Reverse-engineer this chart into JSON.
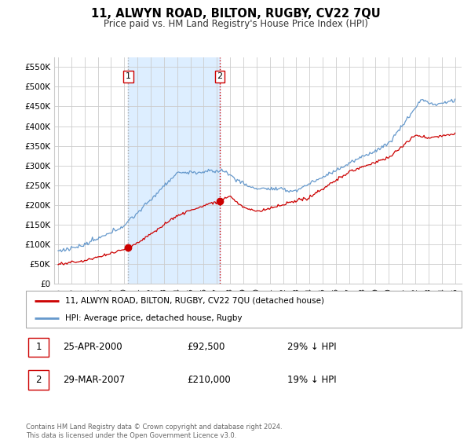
{
  "title": "11, ALWYN ROAD, BILTON, RUGBY, CV22 7QU",
  "subtitle": "Price paid vs. HM Land Registry's House Price Index (HPI)",
  "legend_label_red": "11, ALWYN ROAD, BILTON, RUGBY, CV22 7QU (detached house)",
  "legend_label_blue": "HPI: Average price, detached house, Rugby",
  "transaction1_date": "25-APR-2000",
  "transaction1_price": "£92,500",
  "transaction1_pct": "29% ↓ HPI",
  "transaction1_year": 2000.3,
  "transaction1_value": 92500,
  "transaction2_date": "29-MAR-2007",
  "transaction2_price": "£210,000",
  "transaction2_pct": "19% ↓ HPI",
  "transaction2_year": 2007.23,
  "transaction2_value": 210000,
  "footer": "Contains HM Land Registry data © Crown copyright and database right 2024.\nThis data is licensed under the Open Government Licence v3.0.",
  "background_color": "#ffffff",
  "grid_color": "#cccccc",
  "red_color": "#cc0000",
  "blue_color": "#6699cc",
  "shade_color": "#ddeeff",
  "marker1_line_color": "#aaaaaa",
  "marker2_line_color": "#cc0000",
  "ylim": [
    0,
    575000
  ],
  "xlim_start": 1994.7,
  "xlim_end": 2025.5,
  "yticks": [
    0,
    50000,
    100000,
    150000,
    200000,
    250000,
    300000,
    350000,
    400000,
    450000,
    500000,
    550000
  ],
  "ylabels": [
    "£0",
    "£50K",
    "£100K",
    "£150K",
    "£200K",
    "£250K",
    "£300K",
    "£350K",
    "£400K",
    "£450K",
    "£500K",
    "£550K"
  ]
}
